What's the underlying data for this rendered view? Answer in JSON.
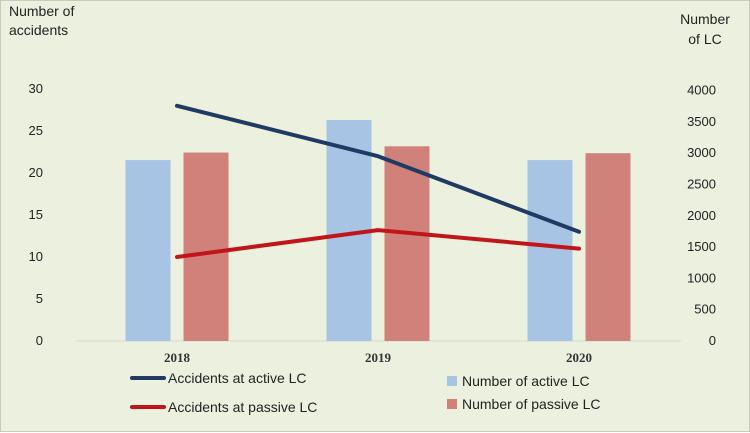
{
  "chart_data": {
    "type": "bar",
    "categories": [
      "2018",
      "2019",
      "2020"
    ],
    "left_axis": {
      "label_line1": "Number of",
      "label_line2": "accidents",
      "range": [
        0,
        30
      ],
      "ticks": [
        "0",
        "5",
        "10",
        "15",
        "20",
        "25",
        "30"
      ]
    },
    "right_axis": {
      "label_line1": "Number",
      "label_line2": "of LC",
      "range": [
        0,
        4000
      ],
      "ticks": [
        "0",
        "500",
        "1000",
        "1500",
        "2000",
        "2500",
        "3000",
        "3500",
        "4000"
      ]
    },
    "bar_series": [
      {
        "name": "Number of active LC",
        "axis": "right",
        "color": "#a7c4e4",
        "values": [
          2890,
          3530,
          2890
        ]
      },
      {
        "name": "Number of passive LC",
        "axis": "right",
        "color": "#d0817a",
        "values": [
          3010,
          3110,
          3000
        ]
      }
    ],
    "line_series": [
      {
        "name": "Accidents at active LC",
        "axis": "left",
        "color": "#1f3b63",
        "values": [
          28,
          22,
          13
        ]
      },
      {
        "name": "Accidents at passive LC",
        "axis": "left",
        "color": "#c0161b",
        "values": [
          10,
          13.2,
          11
        ]
      }
    ],
    "grid": false,
    "legend_position": "bottom"
  }
}
